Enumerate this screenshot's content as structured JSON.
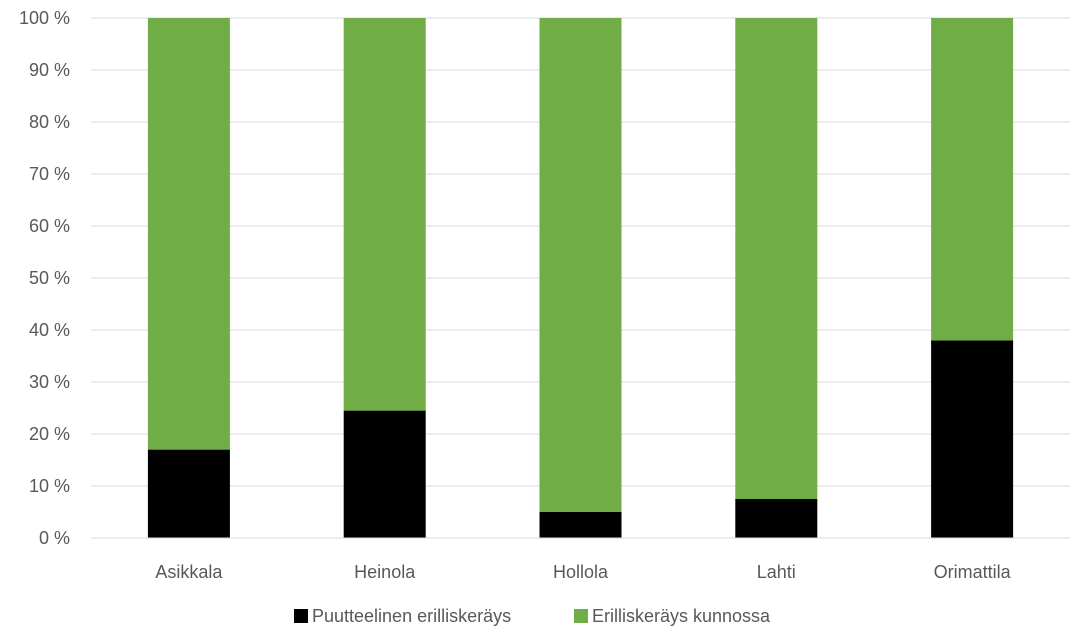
{
  "chart_data": {
    "type": "bar",
    "stacked": true,
    "categories": [
      "Asikkala",
      "Heinola",
      "Hollola",
      "Lahti",
      "Orimattila"
    ],
    "series": [
      {
        "name": "Puutteelinen erilliskeräys",
        "color": "#000000",
        "values": [
          17,
          24.5,
          5,
          7.5,
          38
        ]
      },
      {
        "name": "Erilliskeräys kunnossa",
        "color": "#70ad47",
        "values": [
          83,
          75.5,
          95,
          92.5,
          62
        ]
      }
    ],
    "yticks": [
      "0 %",
      "10 %",
      "20 %",
      "30 %",
      "40 %",
      "50 %",
      "60 %",
      "70 %",
      "80 %",
      "90 %",
      "100 %"
    ],
    "ylim": [
      0,
      100
    ],
    "grid": true,
    "legend_position": "bottom"
  }
}
